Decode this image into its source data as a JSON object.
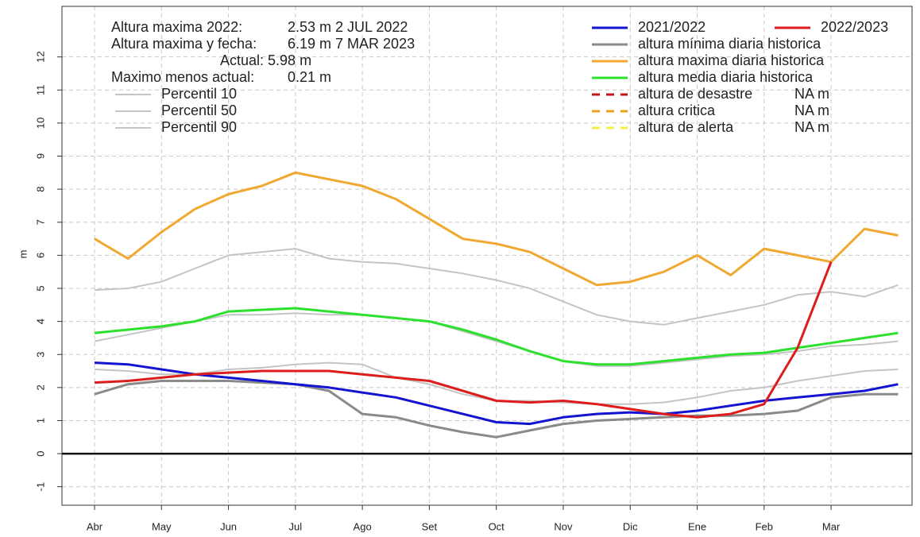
{
  "chart_data": {
    "type": "line",
    "y_label": "m",
    "categories": [
      "Abr",
      null,
      "May",
      null,
      "Jun",
      null,
      "Jul",
      null,
      "Ago",
      null,
      "Set",
      null,
      "Oct",
      null,
      "Nov",
      null,
      "Dic",
      null,
      "Ene",
      null,
      "Feb",
      null,
      "Mar",
      null,
      null
    ],
    "ylim": [
      -1.56,
      13.53
    ],
    "yticks": [
      -1,
      0,
      1,
      2,
      3,
      4,
      5,
      6,
      7,
      8,
      9,
      10,
      11,
      12
    ],
    "grid": true,
    "annotations": [
      "Altura maxima 2022:",
      "2.53 m 2 JUL 2022",
      "Altura maxima y fecha:",
      "6.19 m 7 MAR 2023",
      "Actual: 5.98 m",
      "Maximo menos actual:",
      "0.21 m"
    ],
    "series": [
      {
        "name": "Percentil 10",
        "color": "#c4c4c4",
        "values": [
          2.55,
          2.5,
          2.4,
          2.4,
          2.55,
          2.6,
          2.7,
          2.75,
          2.7,
          2.3,
          2.1,
          1.8,
          1.6,
          1.6,
          1.55,
          1.5,
          1.5,
          1.55,
          1.7,
          1.9,
          2.0,
          2.2,
          2.35,
          2.5,
          2.55
        ]
      },
      {
        "name": "Percentil 50",
        "color": "#c4c4c4",
        "values": [
          3.4,
          3.6,
          3.8,
          4.0,
          4.2,
          4.2,
          4.25,
          4.2,
          4.2,
          4.1,
          4.0,
          3.7,
          3.4,
          3.1,
          2.8,
          2.65,
          2.65,
          2.75,
          2.85,
          2.95,
          3.0,
          3.1,
          3.25,
          3.3,
          3.4
        ]
      },
      {
        "name": "Percentil 90",
        "color": "#c4c4c4",
        "values": [
          4.95,
          5.0,
          5.2,
          5.6,
          6.0,
          6.1,
          6.2,
          5.9,
          5.8,
          5.75,
          5.6,
          5.45,
          5.25,
          5.0,
          4.6,
          4.2,
          4.0,
          3.9,
          4.1,
          4.3,
          4.5,
          4.8,
          4.9,
          4.75,
          5.1
        ]
      },
      {
        "name": "altura mínima diaria historica",
        "color": "#8a8a8a",
        "values": [
          1.8,
          2.1,
          2.2,
          2.2,
          2.2,
          2.15,
          2.1,
          1.9,
          1.2,
          1.1,
          0.85,
          0.65,
          0.5,
          0.7,
          0.9,
          1.0,
          1.05,
          1.1,
          1.15,
          1.15,
          1.2,
          1.3,
          1.7,
          1.8,
          1.8
        ]
      },
      {
        "name": "altura maxima diaria historica",
        "color": "#f0a830",
        "values": [
          6.5,
          5.9,
          6.7,
          7.4,
          7.85,
          8.1,
          8.5,
          8.3,
          8.1,
          7.7,
          7.1,
          6.5,
          6.35,
          6.1,
          5.6,
          5.1,
          5.2,
          5.5,
          6.0,
          5.4,
          6.2,
          6.0,
          5.8,
          6.8,
          6.6
        ]
      },
      {
        "name": "altura media diaria historica",
        "color": "#2ee02e",
        "values": [
          3.65,
          3.75,
          3.85,
          4.0,
          4.3,
          4.35,
          4.4,
          4.3,
          4.2,
          4.1,
          4.0,
          3.75,
          3.45,
          3.1,
          2.8,
          2.7,
          2.7,
          2.8,
          2.9,
          3.0,
          3.05,
          3.2,
          3.35,
          3.5,
          3.65
        ]
      },
      {
        "name": "2021/2022",
        "color": "#1414d0",
        "values": [
          2.75,
          2.7,
          2.55,
          2.4,
          2.3,
          2.2,
          2.1,
          2.0,
          1.85,
          1.7,
          1.45,
          1.2,
          0.95,
          0.9,
          1.1,
          1.2,
          1.25,
          1.2,
          1.3,
          1.45,
          1.6,
          1.7,
          1.8,
          1.9,
          2.1
        ]
      },
      {
        "name": "2022/2023",
        "color": "#dd1c1c",
        "values": [
          2.15,
          2.2,
          2.3,
          2.4,
          2.45,
          2.5,
          2.5,
          2.5,
          2.4,
          2.3,
          2.2,
          1.9,
          1.6,
          1.55,
          1.6,
          1.5,
          1.35,
          1.2,
          1.1,
          1.2,
          1.5,
          3.2,
          5.8,
          null,
          null
        ]
      }
    ],
    "reference_lines": [
      {
        "name": "altura de desastre",
        "color": "#c81414",
        "value_label": "NA m"
      },
      {
        "name": "altura critica",
        "color": "#f0a020",
        "value_label": "NA m"
      },
      {
        "name": "altura de alerta",
        "color": "#f0f040",
        "value_label": "NA m"
      }
    ]
  }
}
